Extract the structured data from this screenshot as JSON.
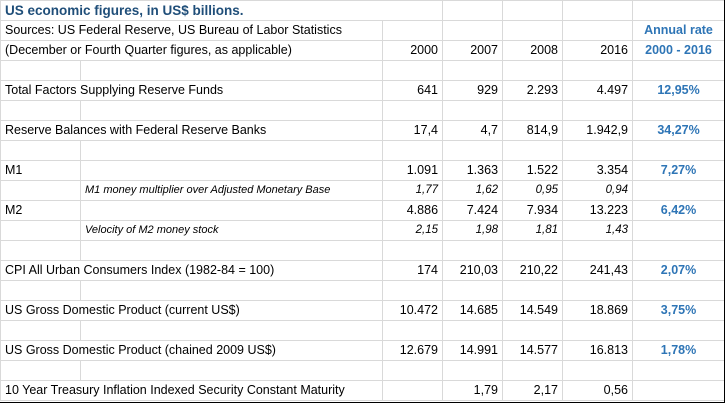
{
  "header": {
    "title": "US economic figures, in US$ billions.",
    "sources": "Sources: US Federal Reserve, US Bureau of Labor Statistics",
    "note": "(December or Fourth Quarter figures, as applicable)",
    "annual_rate_label": "Annual rate",
    "annual_rate_range": "2000 - 2016",
    "years": [
      "2000",
      "2007",
      "2008",
      "2016"
    ]
  },
  "rows": [
    {
      "label": "Total Factors Supplying Reserve Funds",
      "values": [
        "641",
        "929",
        "2.293",
        "4.497"
      ],
      "rate": "12,95%"
    },
    {
      "label": "Reserve Balances with Federal Reserve Banks",
      "values": [
        "17,4",
        "4,7",
        "814,9",
        "1.942,9"
      ],
      "rate": "34,27%"
    },
    {
      "label": "M1",
      "values": [
        "1.091",
        "1.363",
        "1.522",
        "3.354"
      ],
      "rate": "7,27%"
    },
    {
      "label": "M1 money multiplier over Adjusted Monetary Base",
      "values": [
        "1,77",
        "1,62",
        "0,95",
        "0,94"
      ],
      "rate": ""
    },
    {
      "label": "M2",
      "values": [
        "4.886",
        "7.424",
        "7.934",
        "13.223"
      ],
      "rate": "6,42%"
    },
    {
      "label": "Velocity of M2 money stock",
      "values": [
        "2,15",
        "1,98",
        "1,81",
        "1,43"
      ],
      "rate": ""
    },
    {
      "label": "CPI All Urban Consumers Index (1982-84 = 100)",
      "values": [
        "174",
        "210,03",
        "210,22",
        "241,43"
      ],
      "rate": "2,07%"
    },
    {
      "label": "US Gross Domestic Product (current US$)",
      "values": [
        "10.472",
        "14.685",
        "14.549",
        "18.869"
      ],
      "rate": "3,75%"
    },
    {
      "label": "US Gross Domestic Product (chained 2009 US$)",
      "values": [
        "12.679",
        "14.991",
        "14.577",
        "16.813"
      ],
      "rate": "1,78%"
    },
    {
      "label": "10 Year Treasury Inflation Indexed Security Constant Maturity",
      "values": [
        "",
        "1,79",
        "2,17",
        "0,56"
      ],
      "rate": ""
    }
  ]
}
